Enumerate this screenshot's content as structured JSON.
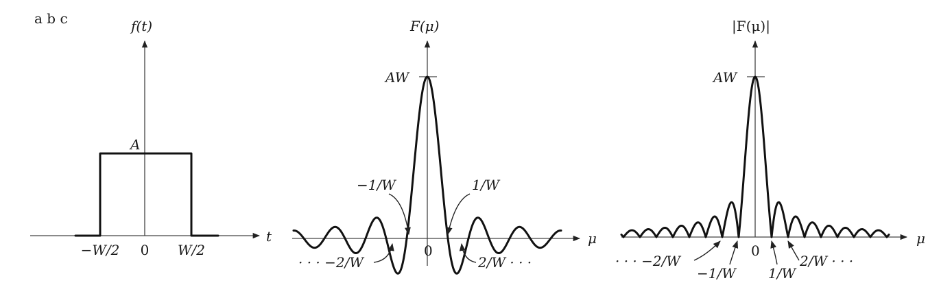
{
  "panel_letters": "a b c",
  "panel_a": {
    "y_axis_label": "f(t)",
    "x_axis_label": "t",
    "amplitude_label": "A",
    "tick_neg": "−W/2",
    "tick_zero": "0",
    "tick_pos": "W/2"
  },
  "panel_b": {
    "y_axis_label": "F(μ)",
    "x_axis_label": "μ",
    "peak_label": "AW",
    "zero_label": "0",
    "ann_neg1": "−1/W",
    "ann_pos1": "1/W",
    "ann_neg2": "· · · −2/W",
    "ann_pos2": "2/W · · ·"
  },
  "panel_c": {
    "y_axis_label": "|F(μ)|",
    "x_axis_label": "μ",
    "peak_label": "AW",
    "zero_label": "0",
    "ann_neg2": "· · · −2/W",
    "ann_neg1": "−1/W",
    "ann_pos1": "1/W",
    "ann_pos2": "2/W · · ·"
  }
}
